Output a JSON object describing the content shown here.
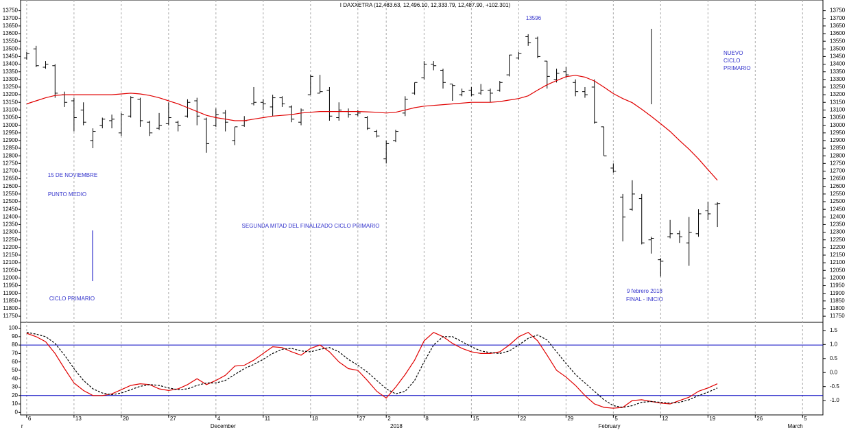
{
  "chart_data": [
    {
      "type": "ohlc",
      "title": "I DAXXETRA (12,483.63, 12,496.10, 12,333.79, 12,487.90, +102.301)",
      "annotations": [
        "13596",
        "15 DE NOVIEMBRE",
        "PUNTO MEDIO",
        "SEGUNDA MITAD DEL FINALIZADO CICLO PRIMARIO",
        "CICLO PRIMARIO",
        "9 febrero 2018",
        "FINAL - INICIO",
        "NUEVO",
        "CICLO",
        "PRIMARIO"
      ],
      "color": "#000000",
      "open": [
        13440,
        13500,
        13380,
        13390,
        13200,
        13160,
        13100,
        12900,
        13000,
        13030,
        12950,
        13060,
        13170,
        13020,
        12980,
        13010,
        13020,
        13060,
        13160,
        13040,
        13000,
        13080,
        12900,
        13000,
        13140,
        13150,
        13120,
        13180,
        13120,
        13020,
        13200,
        13210,
        13230,
        13050,
        13090,
        13070,
        13050,
        12960,
        12780,
        12900,
        13080,
        13210,
        13310,
        13400,
        13360,
        13270,
        13200,
        13230,
        13210,
        13230,
        13230,
        13330,
        13440,
        13580,
        13570,
        13420,
        13300,
        13350,
        13280,
        13220,
        13250,
        12990,
        12720,
        12530,
        12450,
        12520,
        12250,
        12120,
        12270,
        12290,
        12230,
        12290,
        12440,
        12483.63
      ],
      "high": [
        13480,
        13520,
        13420,
        13400,
        13220,
        13180,
        13150,
        12980,
        13050,
        13070,
        13080,
        13190,
        13180,
        13030,
        13080,
        13150,
        13030,
        13170,
        13180,
        13050,
        13110,
        13100,
        12990,
        13060,
        13250,
        13170,
        13200,
        13190,
        13130,
        13110,
        13330,
        13330,
        13250,
        13150,
        13110,
        13100,
        13060,
        12970,
        12900,
        12970,
        13190,
        13280,
        13420,
        13420,
        13370,
        13270,
        13240,
        13250,
        13270,
        13240,
        13290,
        13460,
        13480,
        13596,
        13580,
        13420,
        13370,
        13380,
        13300,
        13250,
        13300,
        12990,
        12750,
        12550,
        12640,
        12550,
        12270,
        12130,
        12380,
        12310,
        12400,
        12450,
        12500,
        12496.1
      ],
      "low": [
        13430,
        13380,
        13370,
        13180,
        13120,
        12960,
        13000,
        12850,
        12980,
        12980,
        12930,
        13050,
        12990,
        12930,
        12970,
        13000,
        12960,
        13050,
        13000,
        12820,
        12990,
        12960,
        12870,
        12990,
        13130,
        13100,
        13060,
        13120,
        13020,
        13000,
        13200,
        13210,
        13030,
        13030,
        13050,
        13060,
        12970,
        12920,
        12750,
        12890,
        13060,
        13200,
        13300,
        13360,
        13240,
        13160,
        13190,
        13190,
        13200,
        13150,
        13220,
        13320,
        13430,
        13520,
        13440,
        13240,
        13280,
        13310,
        13190,
        13180,
        13010,
        12800,
        12690,
        12240,
        12440,
        12220,
        12160,
        12010,
        12260,
        12230,
        12080,
        12270,
        12380,
        12333.79
      ],
      "close": [
        13470,
        13390,
        13400,
        13210,
        13150,
        13050,
        13020,
        12960,
        13040,
        13040,
        13070,
        13180,
        13030,
        12950,
        13000,
        13050,
        13000,
        13150,
        13060,
        12880,
        13070,
        13020,
        12990,
        13030,
        13150,
        13140,
        13180,
        13140,
        13040,
        13100,
        13320,
        13220,
        13060,
        13100,
        13070,
        13080,
        12980,
        12930,
        12880,
        12960,
        13170,
        13280,
        13400,
        13390,
        13280,
        13260,
        13220,
        13200,
        13230,
        13210,
        13280,
        13460,
        13470,
        13540,
        13450,
        13320,
        13340,
        13330,
        13220,
        13200,
        13020,
        12800,
        12700,
        12400,
        12550,
        12230,
        12260,
        12110,
        12290,
        12270,
        12300,
        12420,
        12420,
        12487.9
      ],
      "overlay": {
        "color": "#e00000",
        "values": [
          13140,
          13160,
          13180,
          13195,
          13200,
          13200,
          13200,
          13200,
          13200,
          13200,
          13205,
          13210,
          13205,
          13195,
          13180,
          13160,
          13140,
          13115,
          13090,
          13065,
          13050,
          13040,
          13030,
          13030,
          13040,
          13050,
          13060,
          13065,
          13070,
          13080,
          13085,
          13090,
          13090,
          13090,
          13090,
          13090,
          13088,
          13085,
          13080,
          13085,
          13100,
          13115,
          13125,
          13130,
          13135,
          13140,
          13145,
          13150,
          13150,
          13150,
          13155,
          13165,
          13175,
          13193,
          13230,
          13265,
          13292,
          13318,
          13327,
          13315,
          13290,
          13250,
          13207,
          13175,
          13148,
          13105,
          13059,
          13010,
          12960,
          12900,
          12843,
          12780,
          12710,
          12640
        ]
      },
      "ylim": [
        11710,
        13820
      ],
      "yticks": [
        11750,
        11800,
        11850,
        11900,
        11950,
        12000,
        12050,
        12100,
        12150,
        12200,
        12250,
        12300,
        12350,
        12400,
        12450,
        12500,
        12550,
        12600,
        12650,
        12700,
        12750,
        12800,
        12850,
        12900,
        12950,
        13000,
        13050,
        13100,
        13150,
        13200,
        13250,
        13300,
        13350,
        13400,
        13450,
        13500,
        13550,
        13600,
        13650,
        13700,
        13750
      ],
      "grid": true
    },
    {
      "type": "line",
      "categories": [
        "6",
        null,
        null,
        null,
        null,
        "13",
        null,
        null,
        null,
        null,
        "20",
        null,
        null,
        null,
        null,
        "27",
        null,
        null,
        null,
        null,
        "4",
        null,
        null,
        null,
        null,
        "11",
        null,
        null,
        null,
        null,
        "18",
        null,
        null,
        null,
        null,
        "27",
        null,
        null,
        "2",
        null,
        null,
        null,
        "8",
        null,
        null,
        null,
        null,
        "15",
        null,
        null,
        null,
        null,
        "22",
        null,
        null,
        null,
        null,
        "29",
        null,
        null,
        null,
        null,
        "5",
        null,
        null,
        null,
        null,
        "12",
        null,
        null,
        null,
        null,
        "19",
        null,
        null,
        null,
        null,
        "26",
        null,
        null,
        null,
        null,
        "5",
        null
      ],
      "months": [
        "r",
        null,
        null,
        null,
        null,
        null,
        null,
        null,
        null,
        null,
        null,
        null,
        null,
        null,
        null,
        null,
        null,
        null,
        null,
        null,
        "December",
        null,
        null,
        null,
        null,
        null,
        null,
        null,
        null,
        null,
        null,
        null,
        null,
        null,
        null,
        null,
        null,
        null,
        null,
        "2018",
        null,
        null,
        null,
        null,
        null,
        null,
        null,
        null,
        null,
        null,
        null,
        null,
        null,
        null,
        null,
        null,
        null,
        null,
        null,
        null,
        null,
        "February",
        null,
        null,
        null,
        null,
        null,
        null,
        null,
        null,
        null,
        null,
        null,
        null,
        null,
        null,
        null,
        null,
        null,
        null,
        null,
        "March",
        null,
        null
      ],
      "series": [
        {
          "color": "#e00000",
          "values": [
            94,
            90,
            84,
            70,
            52,
            35,
            26,
            20,
            20,
            22,
            27,
            32,
            34,
            33,
            28,
            26,
            28,
            33,
            40,
            33,
            38,
            44,
            55,
            56,
            62,
            70,
            78,
            77,
            72,
            68,
            76,
            80,
            72,
            60,
            52,
            50,
            38,
            25,
            17,
            30,
            45,
            62,
            85,
            95,
            90,
            82,
            76,
            72,
            70,
            70,
            72,
            80,
            90,
            95,
            85,
            68,
            50,
            42,
            32,
            20,
            10,
            6,
            5,
            6,
            14,
            15,
            13,
            11,
            10,
            14,
            18,
            25,
            29,
            34,
            null,
            null,
            null,
            null,
            null,
            null,
            null,
            null,
            null,
            null
          ]
        },
        {
          "color": "#000000",
          "dashed": true,
          "values": [
            95,
            93,
            90,
            82,
            68,
            52,
            38,
            28,
            23,
            21,
            23,
            27,
            31,
            33,
            32,
            29,
            27,
            28,
            32,
            35,
            35,
            38,
            45,
            52,
            57,
            63,
            70,
            75,
            76,
            73,
            72,
            75,
            77,
            72,
            63,
            56,
            48,
            38,
            28,
            22,
            25,
            38,
            60,
            80,
            90,
            90,
            84,
            78,
            73,
            71,
            70,
            73,
            80,
            88,
            92,
            86,
            72,
            58,
            45,
            35,
            25,
            15,
            8,
            6,
            8,
            12,
            13,
            12,
            11,
            12,
            15,
            20,
            24,
            29,
            null,
            null,
            null,
            null,
            null,
            null,
            null,
            null,
            null,
            null
          ]
        }
      ],
      "levels": [
        80,
        20
      ],
      "level_color": "#0000c0",
      "ylim": [
        -3,
        107
      ],
      "yticks": [
        0,
        10,
        20,
        30,
        40,
        50,
        60,
        70,
        80,
        90,
        100
      ],
      "y2lim": [
        -1.51,
        1.79
      ],
      "y2ticks": [
        {
          "value": -1,
          "label": "-1.0"
        },
        -0.5,
        {
          "value": 0,
          "label": "0.0"
        },
        0.5,
        {
          "value": 1,
          "label": "1.0"
        },
        1.5
      ],
      "grid": true
    }
  ]
}
